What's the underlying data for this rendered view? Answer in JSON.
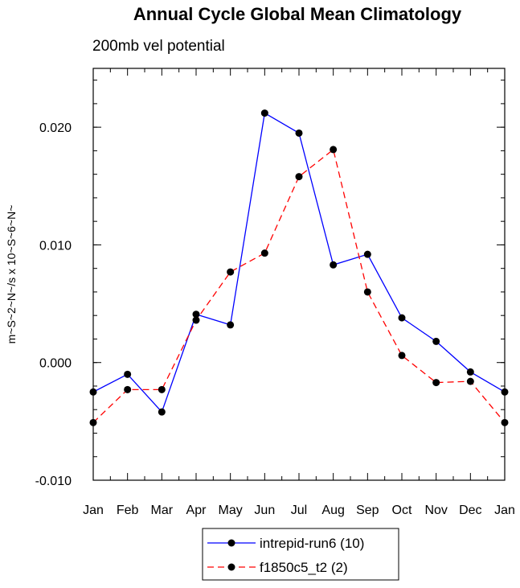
{
  "chart_data": {
    "type": "line",
    "title": "Annual Cycle Global Mean Climatology",
    "subtitle": "200mb vel potential",
    "xlabel": "",
    "ylabel": "m~S~2~N~/s x 10~S~6~N~",
    "categories": [
      "Jan",
      "Feb",
      "Mar",
      "Apr",
      "May",
      "Jun",
      "Jul",
      "Aug",
      "Sep",
      "Oct",
      "Nov",
      "Dec",
      "Jan"
    ],
    "ylim": [
      -0.01,
      0.025
    ],
    "yticks": [
      {
        "value": -0.01,
        "label": "-0.010"
      },
      {
        "value": 0.0,
        "label": "0.000"
      },
      {
        "value": 0.01,
        "label": "0.010"
      },
      {
        "value": 0.02,
        "label": "0.020"
      }
    ],
    "grid": false,
    "legend_position": "bottom-center",
    "series": [
      {
        "name": "intrepid-run6 (10)",
        "color": "#0000ff",
        "dash": "solid",
        "marker": "filled-circle",
        "values": [
          -0.0025,
          -0.001,
          -0.0042,
          0.0041,
          0.0032,
          0.0212,
          0.0195,
          0.0083,
          0.0092,
          0.0038,
          0.0018,
          -0.0008,
          -0.0025
        ]
      },
      {
        "name": "f1850c5_t2 (2)",
        "color": "#ff0000",
        "dash": "dashed",
        "marker": "filled-circle",
        "values": [
          -0.0051,
          -0.0023,
          -0.0023,
          0.0036,
          0.0077,
          0.0093,
          0.0158,
          0.0181,
          0.006,
          0.0006,
          -0.0017,
          -0.0016,
          -0.0051
        ]
      }
    ]
  }
}
